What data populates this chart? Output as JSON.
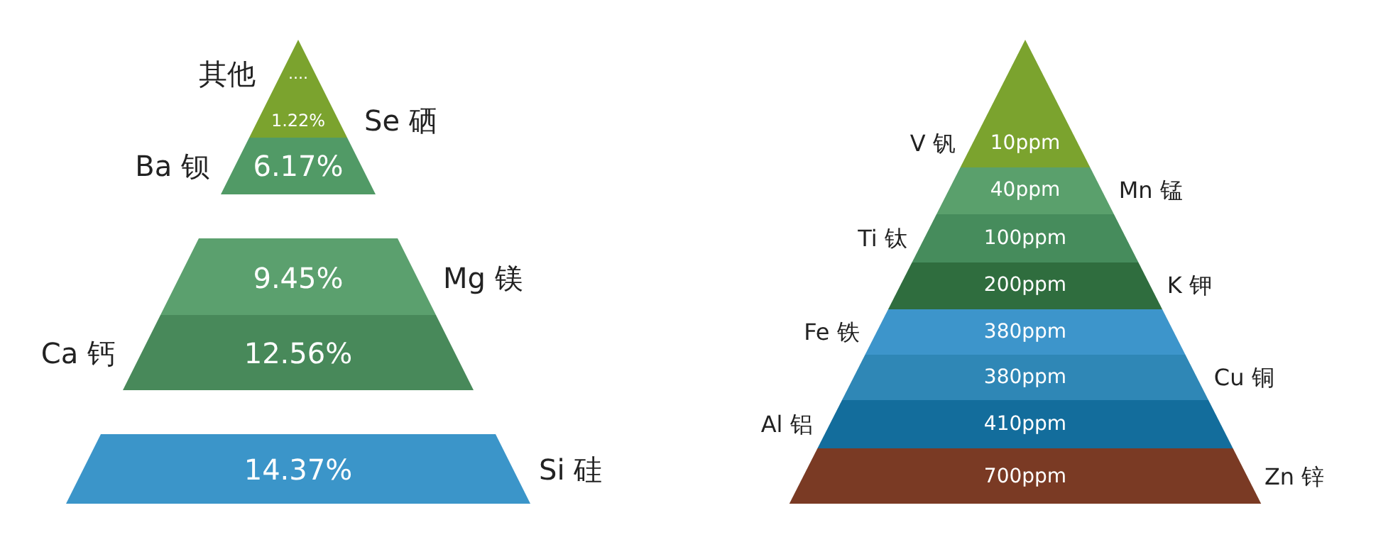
{
  "chart_data": [
    {
      "type": "other",
      "categories": [
        "其他",
        "Se 硒",
        "Ba 钡",
        "Mg 镁",
        "Ca 钙",
        "Si 硅"
      ],
      "values": [
        null,
        1.22,
        6.17,
        9.45,
        12.56,
        14.37
      ],
      "value_labels": [
        "....",
        "1.22%",
        "6.17%",
        "9.45%",
        "12.56%",
        "14.37%"
      ],
      "colors": [
        "#7ba32e",
        "#7ba32e",
        "#519a66",
        "#5ba06e",
        "#48895a",
        "#3b95c9"
      ]
    },
    {
      "type": "other",
      "categories": [
        "V 钒",
        "Mn 锰",
        "Ti 钛",
        "K 钾",
        "Fe 铁",
        "Cu 铜",
        "Al 铝",
        "Zn 锌"
      ],
      "values": [
        10,
        40,
        100,
        200,
        380,
        380,
        410,
        700
      ],
      "value_labels": [
        "10ppm",
        "40ppm",
        "100ppm",
        "200ppm",
        "380ppm",
        "380ppm",
        "410ppm",
        "700ppm"
      ],
      "colors": [
        "#7ba32e",
        "#5aa06c",
        "#468c5c",
        "#2f6d3e",
        "#3d95cb",
        "#2f87b6",
        "#136d9c",
        "#7a3a24"
      ]
    }
  ]
}
